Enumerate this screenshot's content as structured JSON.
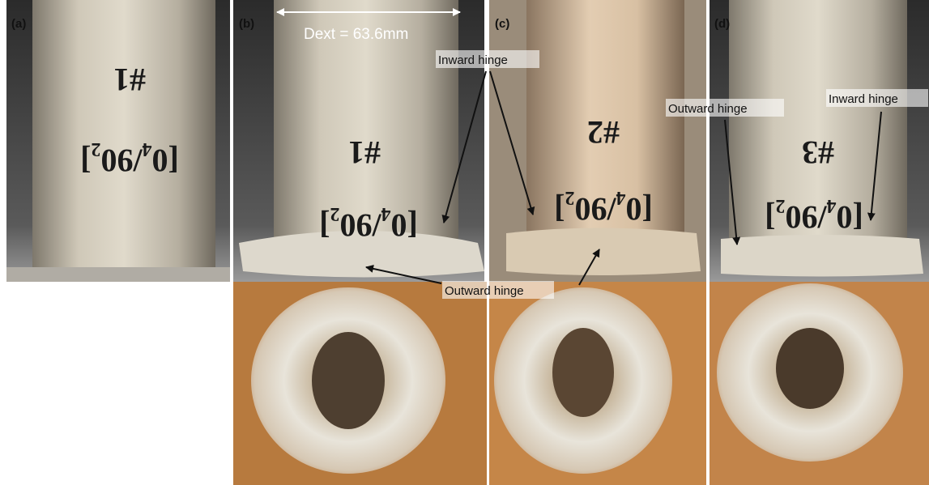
{
  "panels": [
    "(a)",
    "(b)",
    "(c)",
    "(d)"
  ],
  "specimens": [
    {
      "id": "#1",
      "layup": "[0₄/90₂]"
    },
    {
      "id": "#1",
      "layup": "[0₄/90₂]"
    },
    {
      "id": "#2",
      "layup": "[0₄/90₂]"
    },
    {
      "id": "#3",
      "layup": "[0₄/90₂]"
    }
  ],
  "annotations": {
    "diameter": "Dext = 63.6mm",
    "inward_hinge_bc": "Inward hinge",
    "outward_hinge_bc": "Outward hinge",
    "outward_hinge_d": "Outward hinge",
    "inward_hinge_d": "Inward hinge"
  }
}
